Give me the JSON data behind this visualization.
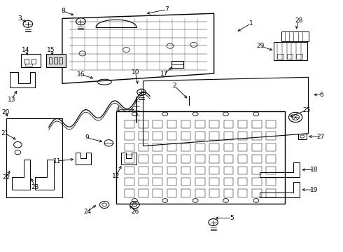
{
  "bg_color": "#ffffff",
  "line_color": "#000000",
  "text_color": "#000000",
  "fig_width": 4.9,
  "fig_height": 3.6,
  "dpi": 100
}
